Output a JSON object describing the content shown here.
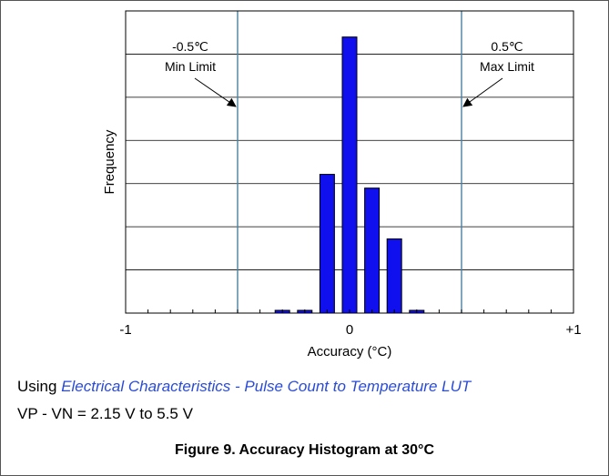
{
  "chart_data": {
    "type": "bar",
    "x": [
      -0.3,
      -0.2,
      -0.1,
      0.0,
      0.1,
      0.2,
      0.3
    ],
    "values": [
      2,
      2,
      101,
      201,
      91,
      54,
      2
    ],
    "xlabel": "Accuracy (°C)",
    "ylabel": "Frequency",
    "xlim": [
      -1,
      1
    ],
    "ylim": [
      0,
      220
    ],
    "x_tick_labels": [
      {
        "value": -1,
        "label": "-1"
      },
      {
        "value": 0,
        "label": "0"
      },
      {
        "value": 1,
        "label": "+1"
      }
    ],
    "grid": "horizontal",
    "bar_color": "#1010ee",
    "limits": [
      {
        "value": -0.5,
        "line1": "-0.5℃",
        "line2": "Min Limit",
        "color": "#4a7fa0"
      },
      {
        "value": 0.5,
        "line1": "0.5℃",
        "line2": "Max Limit",
        "color": "#4a7fa0"
      }
    ]
  },
  "caption": {
    "prefix": "Using ",
    "link": "Electrical Characteristics - Pulse Count to Temperature LUT",
    "line2": "VP - VN = 2.15 V to 5.5 V",
    "figure": "Figure 9. Accuracy Histogram at 30°C"
  }
}
